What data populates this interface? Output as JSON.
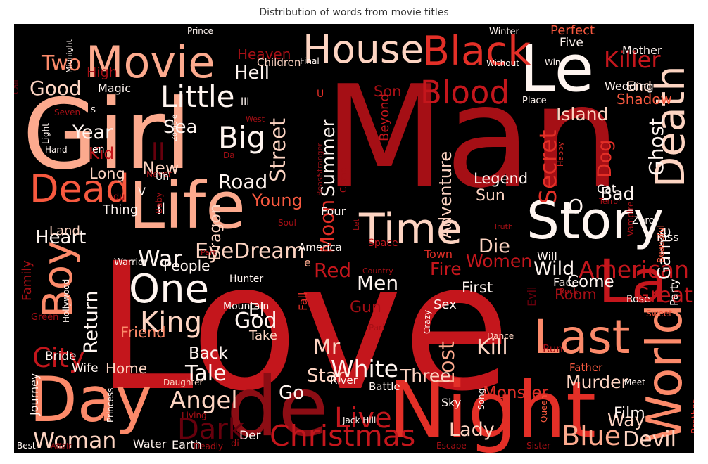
{
  "chart_data": {
    "type": "wordcloud",
    "title": "Distribution of words from movie titles",
    "background": "#000000",
    "colormap": "Reds",
    "palette": [
      "#fdd4c2",
      "#fcaa8e",
      "#fc8a6a",
      "#f7593f",
      "#e32f27",
      "#c4161c",
      "#a50f15",
      "#8c0d14",
      "#67000d",
      "#fff5f0",
      "#ffffff"
    ],
    "words": [
      {
        "text": "Love",
        "weight": 100
      },
      {
        "text": "Man",
        "weight": 93
      },
      {
        "text": "Girl",
        "weight": 76
      },
      {
        "text": "Night",
        "weight": 58
      },
      {
        "text": "de",
        "weight": 58
      },
      {
        "text": "Life",
        "weight": 52
      },
      {
        "text": "Day",
        "weight": 47
      },
      {
        "text": "Story",
        "weight": 42
      },
      {
        "text": "La",
        "weight": 42
      },
      {
        "text": "Le",
        "weight": 42
      },
      {
        "text": "World",
        "weight": 39
      },
      {
        "text": "Last",
        "weight": 38
      },
      {
        "text": "Death",
        "weight": 36
      },
      {
        "text": "Movie",
        "weight": 34
      },
      {
        "text": "Time",
        "weight": 34
      },
      {
        "text": "House",
        "weight": 33
      },
      {
        "text": "Black",
        "weight": 32
      },
      {
        "text": "Boy",
        "weight": 30
      },
      {
        "text": "Dead",
        "weight": 30
      },
      {
        "text": "One",
        "weight": 29
      },
      {
        "text": "Blood",
        "weight": 28
      },
      {
        "text": "Little",
        "weight": 26
      },
      {
        "text": "Christmas",
        "weight": 26
      },
      {
        "text": "Big",
        "weight": 25
      },
      {
        "text": "Live",
        "weight": 24
      },
      {
        "text": "Woman",
        "weight": 23
      },
      {
        "text": "King",
        "weight": 23
      },
      {
        "text": "Dark",
        "weight": 22
      },
      {
        "text": "Blue",
        "weight": 22
      },
      {
        "text": "Killer",
        "weight": 21
      },
      {
        "text": "City",
        "weight": 21
      },
      {
        "text": "American",
        "weight": 20
      },
      {
        "text": "Devil",
        "weight": 20
      },
      {
        "text": "Angel",
        "weight": 20
      },
      {
        "text": "White",
        "weight": 20
      },
      {
        "text": "Secret",
        "weight": 19
      },
      {
        "text": "Two",
        "weight": 19
      },
      {
        "text": "Good",
        "weight": 18
      },
      {
        "text": "Great",
        "weight": 18
      },
      {
        "text": "War",
        "weight": 18
      },
      {
        "text": "EyeDream",
        "weight": 18
      },
      {
        "text": "Ghost",
        "weight": 17
      },
      {
        "text": "Street",
        "weight": 17
      },
      {
        "text": "Lost",
        "weight": 17
      },
      {
        "text": "Return",
        "weight": 17
      },
      {
        "text": "Moon",
        "weight": 16
      },
      {
        "text": "Brother",
        "weight": 16
      },
      {
        "text": "Tale",
        "weight": 16
      },
      {
        "text": "Summer",
        "weight": 16
      },
      {
        "text": "God",
        "weight": 16
      },
      {
        "text": "Men",
        "weight": 16
      },
      {
        "text": "Kill",
        "weight": 16
      },
      {
        "text": "Heart",
        "weight": 15
      },
      {
        "text": "Mr",
        "weight": 15
      },
      {
        "text": "II",
        "weight": 15
      },
      {
        "text": "Road",
        "weight": 15
      },
      {
        "text": "Year",
        "weight": 15
      },
      {
        "text": "Red",
        "weight": 15
      },
      {
        "text": "Star",
        "weight": 15
      },
      {
        "text": "Lady",
        "weight": 15
      },
      {
        "text": "Three",
        "weight": 15
      },
      {
        "text": "Dog",
        "weight": 14
      },
      {
        "text": "Adventure",
        "weight": 14
      },
      {
        "text": "Sea",
        "weight": 14
      },
      {
        "text": "Murder",
        "weight": 14
      },
      {
        "text": "Hell",
        "weight": 14
      },
      {
        "text": "Island",
        "weight": 14
      },
      {
        "text": "Wild",
        "weight": 14
      },
      {
        "text": "Women",
        "weight": 14
      },
      {
        "text": "Fire",
        "weight": 14
      },
      {
        "text": "Die",
        "weight": 14
      },
      {
        "text": "Go",
        "weight": 14
      },
      {
        "text": "Way",
        "weight": 13
      },
      {
        "text": "Young",
        "weight": 13
      },
      {
        "text": "Monster",
        "weight": 13
      },
      {
        "text": "Game",
        "weight": 13
      },
      {
        "text": "Bad",
        "weight": 13
      },
      {
        "text": "El",
        "weight": 13
      },
      {
        "text": "New",
        "weight": 13
      },
      {
        "text": "Film",
        "weight": 13
      },
      {
        "text": "Legend",
        "weight": 12
      },
      {
        "text": "Kid",
        "weight": 12
      },
      {
        "text": "Sun",
        "weight": 12
      },
      {
        "text": "O",
        "weight": 12
      },
      {
        "text": "Come",
        "weight": 12
      },
      {
        "text": "Long",
        "weight": 12
      },
      {
        "text": "Dragon",
        "weight": 12
      },
      {
        "text": "Heaven",
        "weight": 12
      },
      {
        "text": "Back",
        "weight": 12
      },
      {
        "text": "Room",
        "weight": 12
      },
      {
        "text": "Gun",
        "weight": 12
      },
      {
        "text": "Son",
        "weight": 12
      },
      {
        "text": "Friend",
        "weight": 12
      },
      {
        "text": "Home",
        "weight": 12
      },
      {
        "text": "Shadow",
        "weight": 12
      },
      {
        "text": "People",
        "weight": 12
      },
      {
        "text": "Perfect",
        "weight": 12
      },
      {
        "text": "First",
        "weight": 12
      },
      {
        "text": "Land",
        "weight": 11
      },
      {
        "text": "Family",
        "weight": 11
      },
      {
        "text": "High",
        "weight": 11
      },
      {
        "text": "End",
        "weight": 11
      },
      {
        "text": "Il",
        "weight": 11
      },
      {
        "text": "Sex",
        "weight": 11
      },
      {
        "text": "Thing",
        "weight": 11
      },
      {
        "text": "Beyond",
        "weight": 11
      },
      {
        "text": "Take",
        "weight": 11
      },
      {
        "text": "Wife",
        "weight": 10
      },
      {
        "text": "Bride",
        "weight": 10
      },
      {
        "text": "Der",
        "weight": 10
      },
      {
        "text": "Journey",
        "weight": 10
      },
      {
        "text": "Magic",
        "weight": 10
      },
      {
        "text": "Children",
        "weight": 10
      },
      {
        "text": "Water",
        "weight": 10
      },
      {
        "text": "Earth",
        "weight": 10
      },
      {
        "text": "Five",
        "weight": 10
      },
      {
        "text": "Wedding",
        "weight": 10
      },
      {
        "text": "Mother",
        "weight": 10
      },
      {
        "text": "Face",
        "weight": 10
      },
      {
        "text": "Cat",
        "weight": 10
      },
      {
        "text": "Four",
        "weight": 10
      },
      {
        "text": "Evil",
        "weight": 10
      },
      {
        "text": "Party",
        "weight": 10
      },
      {
        "text": "Run",
        "weight": 10
      },
      {
        "text": "Kiss",
        "weight": 10
      },
      {
        "text": "Will",
        "weight": 10
      },
      {
        "text": "Mountain",
        "weight": 9
      },
      {
        "text": "Town",
        "weight": 9
      },
      {
        "text": "Hunter",
        "weight": 9
      },
      {
        "text": "Fall",
        "weight": 9
      },
      {
        "text": "Father",
        "weight": 9
      },
      {
        "text": "Warrior",
        "weight": 9
      },
      {
        "text": "Battle",
        "weight": 9
      },
      {
        "text": "River",
        "weight": 9
      },
      {
        "text": "America",
        "weight": 9
      },
      {
        "text": "Sky",
        "weight": 9
      },
      {
        "text": "Zero",
        "weight": 9
      },
      {
        "text": "Space",
        "weight": 9
      },
      {
        "text": "Rose",
        "weight": 9
      },
      {
        "text": "Hollywood",
        "weight": 8
      },
      {
        "text": "Princess",
        "weight": 8
      },
      {
        "text": "Green",
        "weight": 8
      },
      {
        "text": "Daughter",
        "weight": 8
      },
      {
        "text": "Jack Hill",
        "weight": 8
      },
      {
        "text": "Queen",
        "weight": 8
      },
      {
        "text": "Song",
        "weight": 8
      },
      {
        "text": "Crazy",
        "weight": 8
      },
      {
        "text": "Dance",
        "weight": 8
      },
      {
        "text": "Sweet",
        "weight": 8
      },
      {
        "text": "Prince",
        "weight": 8
      },
      {
        "text": "Winter",
        "weight": 8
      },
      {
        "text": "Place",
        "weight": 8
      },
      {
        "text": "Light",
        "weight": 8
      },
      {
        "text": "Hand",
        "weight": 8
      },
      {
        "text": "Seven",
        "weight": 8
      },
      {
        "text": "Beautiful",
        "weight": 8
      },
      {
        "text": "Final",
        "weight": 8
      },
      {
        "text": "Without",
        "weight": 8
      },
      {
        "text": "Midnight",
        "weight": 7
      },
      {
        "text": "Crime",
        "weight": 7
      },
      {
        "text": "Wind",
        "weight": 7
      },
      {
        "text": "Stranger",
        "weight": 7
      },
      {
        "text": "Best",
        "weight": 7
      },
      {
        "text": "Affair",
        "weight": 7
      },
      {
        "text": "Escape",
        "weight": 7
      },
      {
        "text": "Sister",
        "weight": 7
      },
      {
        "text": "Deadly",
        "weight": 7
      },
      {
        "text": "Meet",
        "weight": 7
      },
      {
        "text": "Living",
        "weight": 7
      },
      {
        "text": "Soul",
        "weight": 7
      },
      {
        "text": "Vampire",
        "weight": 7
      },
      {
        "text": "Country",
        "weight": 7
      },
      {
        "text": "Truth",
        "weight": 7
      },
      {
        "text": "Terror",
        "weight": 7
      },
      {
        "text": "Never",
        "weight": 7
      },
      {
        "text": "Baby",
        "weight": 7
      },
      {
        "text": "Happy",
        "weight": 7
      },
      {
        "text": "Part",
        "weight": 7
      },
      {
        "text": "Rock",
        "weight": 7
      },
      {
        "text": "Pari",
        "weight": 7
      },
      {
        "text": "Beast",
        "weight": 7
      },
      {
        "text": "Call",
        "weight": 7
      },
      {
        "text": "West",
        "weight": 7
      },
      {
        "text": "Zombie",
        "weight": 6
      },
      {
        "text": "Un",
        "weight": 10
      },
      {
        "text": "Da",
        "weight": 8
      },
      {
        "text": "en",
        "weight": 8
      },
      {
        "text": "di",
        "weight": 8
      },
      {
        "text": "du",
        "weight": 8
      },
      {
        "text": "Let",
        "weight": 7
      },
      {
        "text": "V",
        "weight": 10
      },
      {
        "text": "III",
        "weight": 8
      },
      {
        "text": "U",
        "weight": 8
      },
      {
        "text": "S",
        "weight": 7
      },
      {
        "text": "e",
        "weight": 9
      }
    ]
  }
}
